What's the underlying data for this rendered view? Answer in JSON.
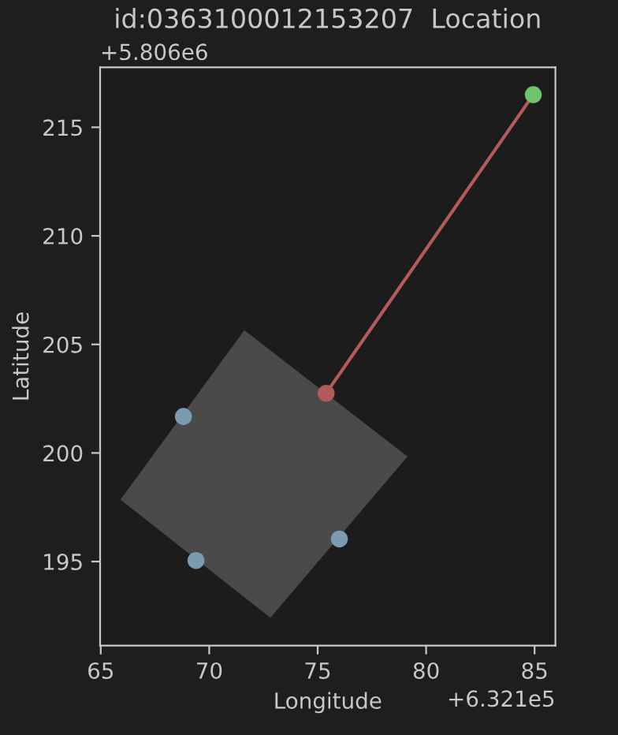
{
  "chart_data": {
    "type": "scatter",
    "title": "id:0363100012153207  Location",
    "xlabel": "Longitude",
    "ylabel": "Latitude",
    "xlim": [
      64.97,
      85.96
    ],
    "ylim": [
      191.13,
      217.76
    ],
    "xticks": [
      65,
      70,
      75,
      80,
      85
    ],
    "yticks": [
      195,
      200,
      205,
      210,
      215
    ],
    "annotations": [
      "+6.321e5",
      "+5.806e6"
    ],
    "grid": false,
    "legend": false,
    "series": [
      {
        "type": "area",
        "color": "#4a4a4a",
        "x": [
          71.62,
          79.14,
          72.82,
          65.91
        ],
        "values": [
          205.65,
          199.84,
          192.41,
          197.85
        ]
      },
      {
        "type": "line",
        "color": "#b55a5a",
        "x": [
          84.94,
          75.39
        ],
        "values": [
          216.5,
          202.75
        ]
      },
      {
        "color": "#7a9bb0",
        "x": [
          68.81,
          69.39,
          76.0
        ],
        "values": [
          201.68,
          195.05,
          196.04
        ]
      },
      {
        "color": "#b55a5a",
        "x": [
          75.39
        ],
        "values": [
          202.75
        ]
      },
      {
        "color": "#6cc46c",
        "x": [
          84.94
        ],
        "values": [
          216.5
        ]
      }
    ]
  }
}
